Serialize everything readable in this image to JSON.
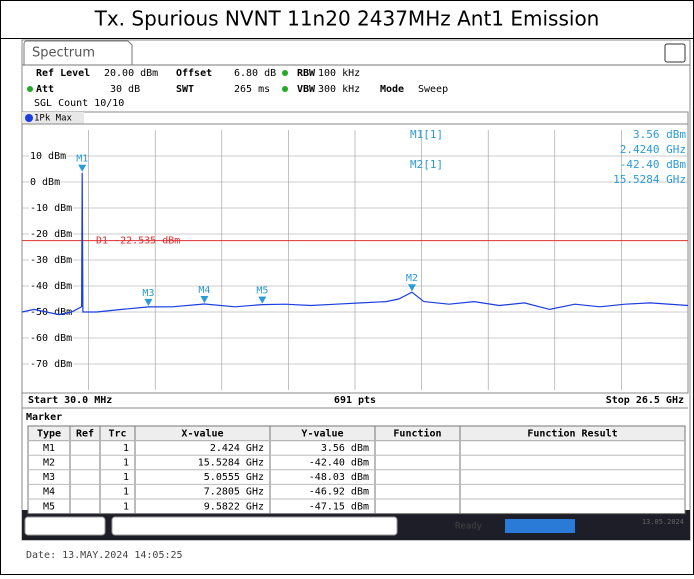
{
  "window_title": "Tx. Spurious NVNT 11n20 2437MHz Ant1 Emission",
  "tab": "Spectrum",
  "settings": {
    "row1": [
      "Ref Level",
      "20.00 dBm",
      "Offset",
      "6.80 dB",
      "RBW",
      "100 kHz"
    ],
    "row2": [
      "Att",
      "30 dB",
      "SWT",
      "265 ms",
      "VBW",
      "300 kHz",
      "Mode",
      "Sweep"
    ],
    "row3": "SGL Count 10/10"
  },
  "trace_label": "1Pk Max",
  "readout": [
    {
      "name": "M1[1]",
      "y": "3.56 dBm",
      "x": "2.4240 GHz"
    },
    {
      "name": "M2[1]",
      "y": "-42.40 dBm",
      "x": "15.5284 GHz"
    }
  ],
  "chart_data": {
    "type": "line",
    "color": "#1a3ee0",
    "xlim": [
      0.03,
      26.5
    ],
    "ylim": [
      -80,
      20
    ],
    "yticks": [
      {
        "value": 10,
        "label": "10 dBm"
      },
      {
        "value": 0,
        "label": "0 dBm"
      },
      {
        "value": -10,
        "label": "-10 dBm"
      },
      {
        "value": -20,
        "label": "-20 dBm"
      },
      {
        "value": -30,
        "label": "-30 dBm"
      },
      {
        "value": -40,
        "label": "-40 dBm"
      },
      {
        "value": -50,
        "label": "-50 dBm"
      },
      {
        "value": -60,
        "label": "-60 dBm"
      },
      {
        "value": -70,
        "label": "-70 dBm"
      }
    ],
    "xgrid_divisions": 10,
    "grid": true,
    "x": [
      0.03,
      0.5,
      1.0,
      1.5,
      2.0,
      2.4,
      2.424,
      2.45,
      3.0,
      4.0,
      5.0555,
      6.0,
      7.2805,
      8.5,
      9.5822,
      10.5,
      11.5,
      12.5,
      13.5,
      14.5,
      15.0,
      15.5284,
      16.0,
      17.0,
      18.0,
      19.0,
      20.0,
      21.0,
      22.0,
      23.0,
      24.0,
      25.0,
      26.5
    ],
    "values": [
      -50,
      -49,
      -50,
      -51,
      -50,
      -48,
      3.56,
      -50,
      -50,
      -49,
      -48.03,
      -48,
      -46.92,
      -48,
      -47.15,
      -47,
      -47.5,
      -47,
      -46.5,
      -46,
      -45,
      -42.4,
      -46,
      -47,
      -46,
      -47.5,
      -46.5,
      -49,
      -47,
      -48,
      -47,
      -46.5,
      -47.5
    ],
    "markers": [
      {
        "label": "M1",
        "x": 2.424,
        "y": 3.56
      },
      {
        "label": "M2",
        "x": 15.5284,
        "y": -42.4
      },
      {
        "label": "M3",
        "x": 5.0555,
        "y": -48.03
      },
      {
        "label": "M4",
        "x": 7.2805,
        "y": -46.92
      },
      {
        "label": "M5",
        "x": 9.5822,
        "y": -47.15
      }
    ],
    "display_line": {
      "label": "D1 -22.535 dBm",
      "value": -22.535,
      "color": "#e03030"
    }
  },
  "footer": {
    "start": "Start 30.0 MHz",
    "points": "691 pts",
    "stop": "Stop 26.5 GHz"
  },
  "marker_table": {
    "title": "Marker",
    "columns": [
      "Type",
      "Ref",
      "Trc",
      "X-value",
      "Y-value",
      "Function",
      "Function Result"
    ],
    "rows": [
      [
        "M1",
        "",
        "1",
        "2.424 GHz",
        "3.56 dBm",
        "",
        ""
      ],
      [
        "M2",
        "",
        "1",
        "15.5284 GHz",
        "-42.40 dBm",
        "",
        ""
      ],
      [
        "M3",
        "",
        "1",
        "5.0555 GHz",
        "-48.03 dBm",
        "",
        ""
      ],
      [
        "M4",
        "",
        "1",
        "7.2805 GHz",
        "-46.92 dBm",
        "",
        ""
      ],
      [
        "M5",
        "",
        "1",
        "9.5822 GHz",
        "-47.15 dBm",
        "",
        ""
      ]
    ]
  },
  "status": {
    "state": "Ready",
    "date": "13.05.2024"
  },
  "date_line": "Date: 13.MAY.2024  14:05:25"
}
